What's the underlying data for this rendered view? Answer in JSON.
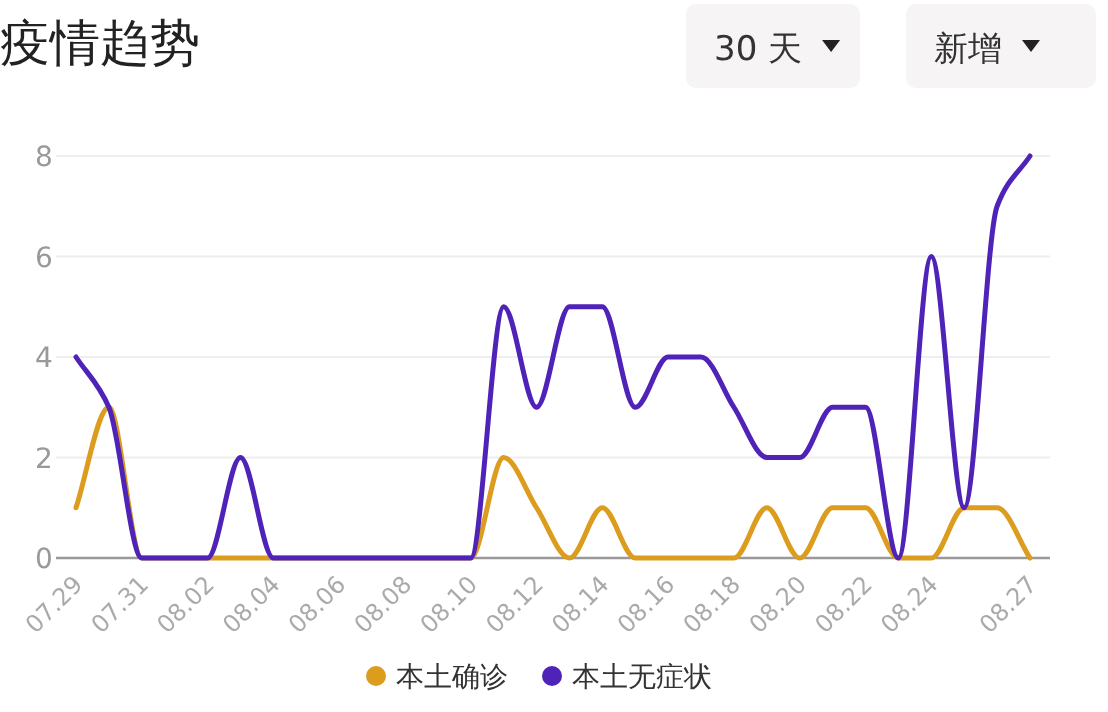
{
  "chart_data": {
    "type": "line",
    "title": "疫情趋势",
    "annotations": [
      "30 天",
      "新增"
    ],
    "categories": [
      "07.29",
      null,
      "07.31",
      null,
      "08.02",
      null,
      "08.04",
      null,
      "08.06",
      null,
      "08.08",
      null,
      "08.10",
      null,
      "08.12",
      null,
      "08.14",
      null,
      "08.16",
      null,
      "08.18",
      null,
      "08.20",
      null,
      "08.22",
      null,
      "08.24",
      null,
      null,
      "08.27"
    ],
    "series": [
      {
        "name": "本土确诊",
        "color": "#dc9c1e",
        "values": [
          1,
          3,
          0,
          0,
          0,
          0,
          0,
          0,
          0,
          0,
          0,
          0,
          0,
          2,
          1,
          0,
          1,
          0,
          0,
          0,
          0,
          1,
          0,
          1,
          1,
          0,
          0,
          1,
          1,
          0
        ]
      },
      {
        "name": "本土无症状",
        "color": "#4f22b8",
        "values": [
          4,
          3,
          0,
          0,
          0,
          2,
          0,
          0,
          0,
          0,
          0,
          0,
          0,
          5,
          3,
          5,
          5,
          3,
          4,
          4,
          3,
          2,
          2,
          3,
          3,
          0,
          6,
          1,
          7,
          8
        ]
      }
    ],
    "ylim": [
      0,
      8
    ],
    "yticks": [
      0,
      2,
      4,
      6,
      8
    ],
    "grid": "y",
    "legend": "bottom",
    "marker": "none",
    "line_style": "solid"
  }
}
